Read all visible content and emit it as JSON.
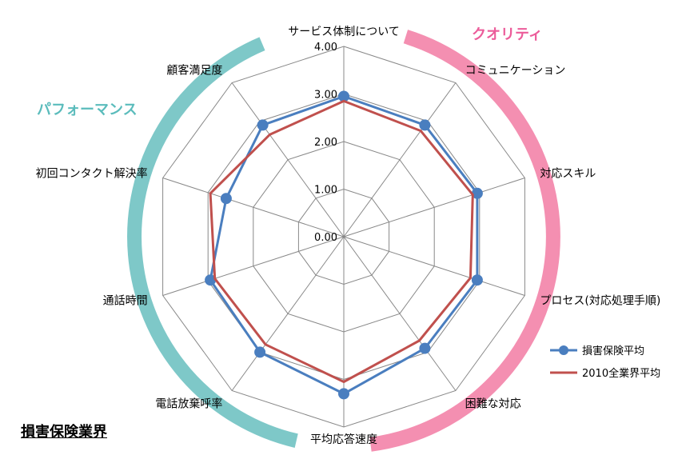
{
  "industry_title": "損害保険業界",
  "chart_data": {
    "type": "radar",
    "categories": [
      "サービス体制について",
      "コミュニケーション",
      "対応スキル",
      "プロセス(対応処理手順)",
      "困難な対応",
      "平均応答速度",
      "電話放棄呼率",
      "通話時間",
      "初回コンタクト解決率",
      "顧客満足度"
    ],
    "ticks": [
      "0.00",
      "1.00",
      "2.00",
      "3.00",
      "4.00"
    ],
    "rlim": [
      0,
      4
    ],
    "series": [
      {
        "name": "損害保険平均",
        "color": "#4a7ebf",
        "marker": "circle",
        "values": [
          2.95,
          2.9,
          2.95,
          2.95,
          2.9,
          3.3,
          3.0,
          2.95,
          2.6,
          2.9
        ]
      },
      {
        "name": "2010全業界平均",
        "color": "#c0504d",
        "marker": "none",
        "values": [
          2.85,
          2.75,
          2.85,
          2.8,
          2.7,
          3.05,
          2.8,
          2.85,
          2.95,
          2.65
        ]
      }
    ],
    "groups": [
      {
        "label": "クオリティ",
        "color": "#f48fb1"
      },
      {
        "label": "パフォーマンス",
        "color": "#7ec8c8"
      }
    ],
    "legend_position": "bottom-right"
  }
}
